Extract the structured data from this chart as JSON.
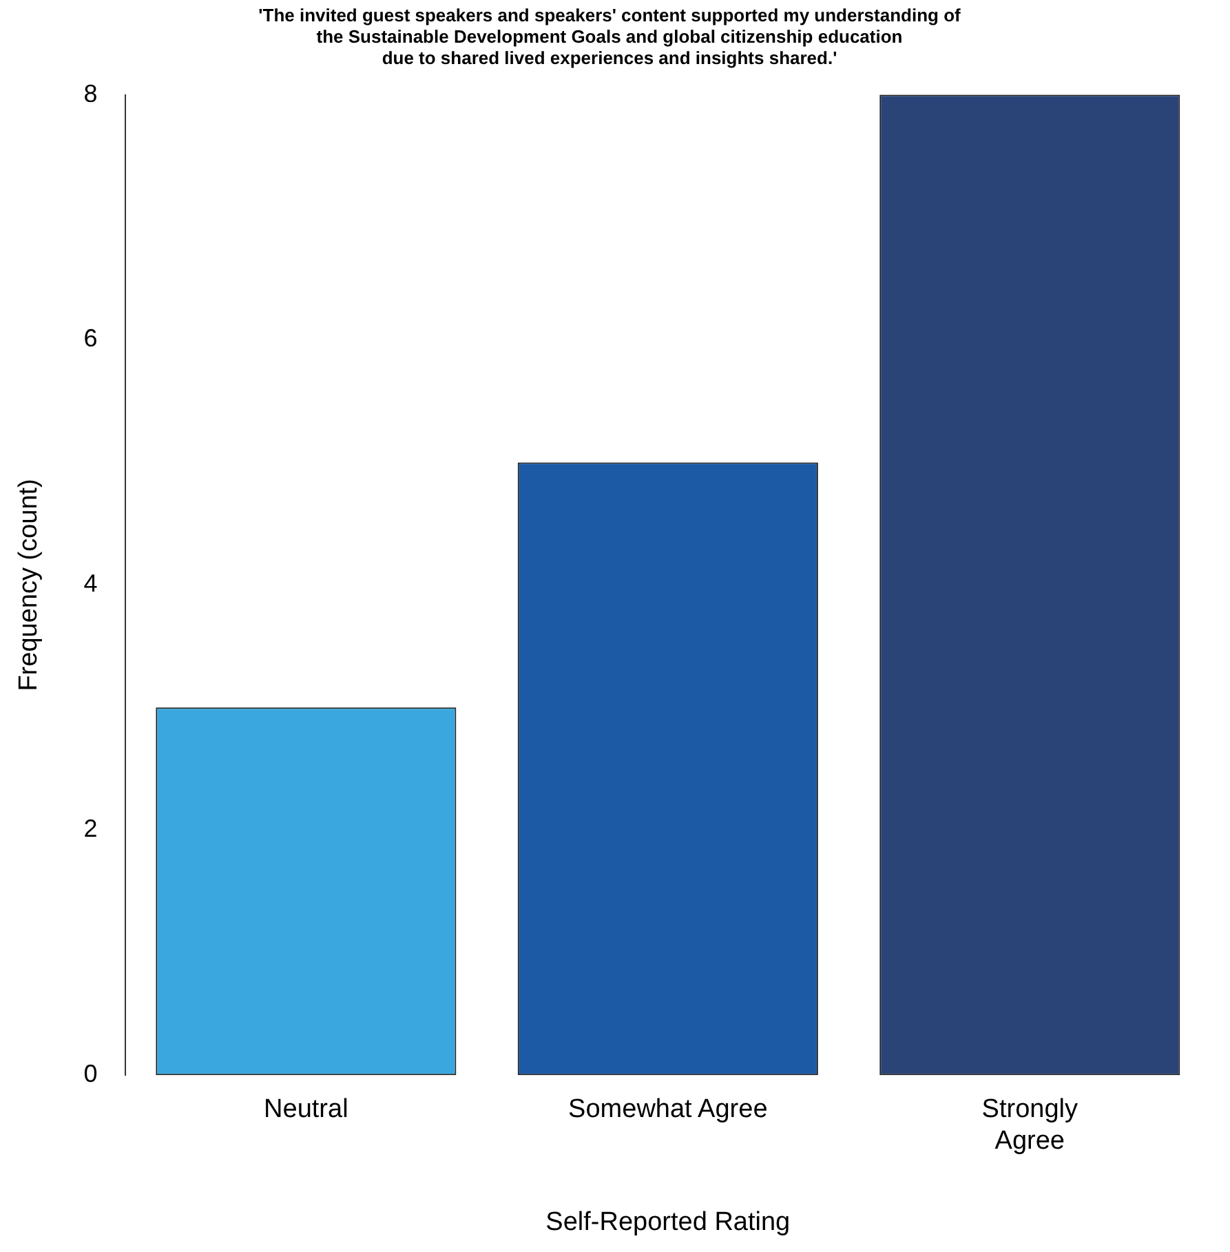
{
  "chart_data": {
    "type": "bar",
    "title": "'The invited guest speakers and speakers' content supported my understanding of\nthe Sustainable Development Goals and global citizenship education\ndue to shared lived experiences and insights shared.'",
    "xlabel": "Self-Reported Rating",
    "ylabel": "Frequency (count)",
    "categories": [
      "Neutral",
      "Somewhat Agree",
      "Strongly\nAgree"
    ],
    "values": [
      3,
      5,
      8
    ],
    "colors": [
      "#3aa8de",
      "#1c5aa6",
      "#2b4478"
    ],
    "ylim": [
      0,
      8
    ],
    "yticks": [
      0,
      2,
      4,
      6,
      8
    ],
    "grid": false,
    "legend": false
  }
}
